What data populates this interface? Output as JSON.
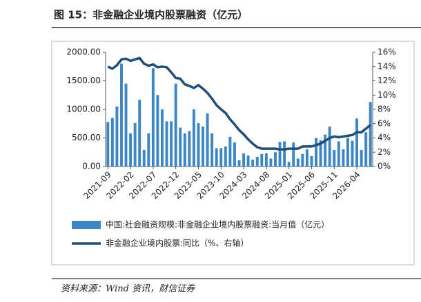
{
  "chart_data": {
    "type": "bar-line",
    "title": "图 15：非金融企业境内股票融资（亿元）",
    "source": "资料来源：Wind 资讯，财信证券",
    "categories": [
      "2021-09",
      null,
      null,
      null,
      null,
      "2022-02",
      null,
      null,
      null,
      null,
      "2022-07",
      null,
      null,
      null,
      null,
      "2022-12",
      null,
      null,
      null,
      null,
      "2023-05",
      null,
      null,
      null,
      null,
      "2023-10",
      null,
      null,
      null,
      null,
      "2024-03",
      null,
      null,
      null,
      null,
      "2024-08",
      null,
      null,
      null,
      null,
      "2025-01",
      null,
      null,
      null,
      null,
      "2025-06",
      null,
      null,
      null,
      null,
      "2025-11",
      null,
      null,
      null,
      null,
      "2026-04",
      null,
      null,
      null
    ],
    "series": [
      {
        "name": "中国:社会融资规模:非金融企业境内股票融资:当月值（亿元）",
        "type": "bar",
        "color": "#3d86c6",
        "values": [
          780,
          850,
          1050,
          1800,
          1450,
          580,
          760,
          1170,
          290,
          580,
          1720,
          1250,
          1000,
          790,
          790,
          1450,
          680,
          580,
          620,
          1000,
          760,
          700,
          930,
          580,
          320,
          320,
          350,
          520,
          420,
          110,
          230,
          190,
          120,
          170,
          220,
          230,
          140,
          250,
          430,
          440,
          80,
          420,
          140,
          220,
          300,
          180,
          500,
          460,
          560,
          700,
          290,
          440,
          300,
          500,
          450,
          840,
          290,
          600,
          1130
        ]
      },
      {
        "name": "非金融企业境内股票:同比（%、右轴）",
        "type": "line",
        "axis": "y2",
        "color": "#1f4e79",
        "values": [
          14.0,
          13.7,
          14.2,
          15.0,
          15.1,
          14.8,
          15.0,
          15.2,
          14.4,
          14.1,
          14.3,
          13.9,
          14.0,
          13.9,
          13.2,
          12.4,
          12.3,
          11.5,
          11.3,
          11.0,
          11.4,
          10.9,
          10.3,
          9.5,
          8.6,
          8.0,
          7.5,
          6.6,
          5.9,
          5.1,
          4.5,
          3.8,
          3.2,
          2.7,
          2.5,
          2.5,
          2.5,
          2.5,
          2.4,
          2.4,
          2.5,
          2.5,
          2.5,
          2.8,
          2.8,
          2.8,
          3.0,
          3.2,
          3.6,
          4.0,
          4.2,
          4.1,
          4.2,
          4.3,
          4.4,
          4.8,
          4.8,
          5.3,
          5.8
        ]
      }
    ],
    "ylim": [
      0,
      2000
    ],
    "yticks": [
      {
        "value": 0,
        "label": "0.00"
      },
      {
        "value": 500,
        "label": "500.00"
      },
      {
        "value": 1000,
        "label": "1000.00"
      },
      {
        "value": 1500,
        "label": "1500.00"
      },
      {
        "value": 2000,
        "label": "2000.00"
      }
    ],
    "y2lim": [
      0,
      16
    ],
    "y2ticks": [
      {
        "value": 0,
        "label": "0%"
      },
      {
        "value": 2,
        "label": "2%"
      },
      {
        "value": 4,
        "label": "4%"
      },
      {
        "value": 6,
        "label": "6%"
      },
      {
        "value": 8,
        "label": "8%"
      },
      {
        "value": 10,
        "label": "10%"
      },
      {
        "value": 12,
        "label": "12%"
      },
      {
        "value": 14,
        "label": "14%"
      },
      {
        "value": 16,
        "label": "16%"
      }
    ]
  }
}
